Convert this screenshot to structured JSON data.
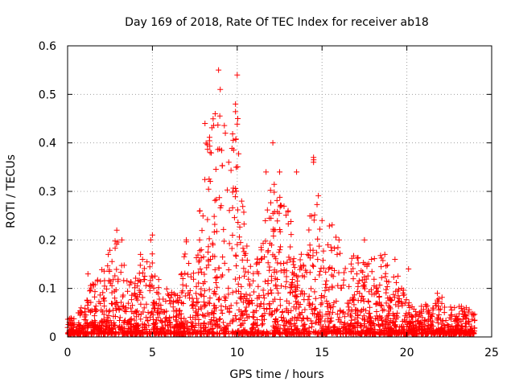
{
  "chart_data": {
    "type": "scatter",
    "title": "Day 169 of 2018, Rate Of TEC Index for receiver ab18",
    "xlabel": "GPS time / hours",
    "ylabel": "ROTI / TECUs",
    "xlim": [
      0,
      25
    ],
    "ylim": [
      0,
      0.6
    ],
    "x_ticks": [
      0,
      5,
      10,
      15,
      20,
      25
    ],
    "x_tick_labels": [
      "0",
      "5",
      "10",
      "15",
      "20",
      "25"
    ],
    "y_ticks": [
      0,
      0.1,
      0.2,
      0.3,
      0.4,
      0.5,
      0.6
    ],
    "y_tick_labels": [
      "0",
      "0.1",
      "0.2",
      "0.3",
      "0.4",
      "0.5",
      "0.6"
    ],
    "grid": true,
    "marker": "+",
    "colors": {
      "points": "#ff0000",
      "axes": "#000000",
      "grid": "#a0a0a0"
    },
    "envelope": {
      "description": "upper envelope of ROTI values sampled along GPS time (hours)",
      "x": [
        0,
        0.5,
        1,
        1.5,
        2,
        2.5,
        3,
        3.5,
        4,
        4.5,
        5,
        5.5,
        6,
        6.5,
        7,
        7.5,
        8,
        8.5,
        9,
        9.5,
        10,
        10.5,
        11,
        11.5,
        12,
        12.5,
        13,
        13.5,
        14,
        14.5,
        15,
        15.5,
        16,
        16.5,
        17,
        17.5,
        18,
        18.5,
        19,
        19.5,
        20,
        20.5,
        21,
        21.5,
        22,
        22.5,
        23,
        23.5,
        24
      ],
      "y": [
        0.04,
        0.05,
        0.07,
        0.13,
        0.15,
        0.18,
        0.21,
        0.14,
        0.13,
        0.17,
        0.2,
        0.1,
        0.1,
        0.1,
        0.2,
        0.12,
        0.38,
        0.44,
        0.54,
        0.36,
        0.54,
        0.2,
        0.15,
        0.2,
        0.34,
        0.3,
        0.26,
        0.2,
        0.16,
        0.37,
        0.24,
        0.25,
        0.2,
        0.14,
        0.2,
        0.16,
        0.16,
        0.17,
        0.14,
        0.13,
        0.08,
        0.06,
        0.07,
        0.06,
        0.09,
        0.06,
        0.07,
        0.06,
        0.05
      ]
    },
    "series": [
      {
        "name": "ROTI",
        "x": [
          0.1,
          0.8,
          1.2,
          2.4,
          2.9,
          3.2,
          4.3,
          4.9,
          5.0,
          7.0,
          7.8,
          8.1,
          8.4,
          8.7,
          8.9,
          9.0,
          9.3,
          9.5,
          9.9,
          10.0,
          11.7,
          12.1,
          12.5,
          13.0,
          13.5,
          14.5,
          14.5,
          15.0,
          16.0,
          17.5,
          18.7,
          19.3,
          20.1,
          21.8,
          23.5
        ],
        "y": [
          0.03,
          0.06,
          0.13,
          0.17,
          0.22,
          0.2,
          0.17,
          0.2,
          0.21,
          0.2,
          0.26,
          0.44,
          0.38,
          0.46,
          0.55,
          0.51,
          0.42,
          0.36,
          0.48,
          0.54,
          0.34,
          0.4,
          0.34,
          0.26,
          0.34,
          0.37,
          0.36,
          0.24,
          0.2,
          0.2,
          0.17,
          0.16,
          0.14,
          0.09,
          0.06
        ]
      }
    ]
  }
}
